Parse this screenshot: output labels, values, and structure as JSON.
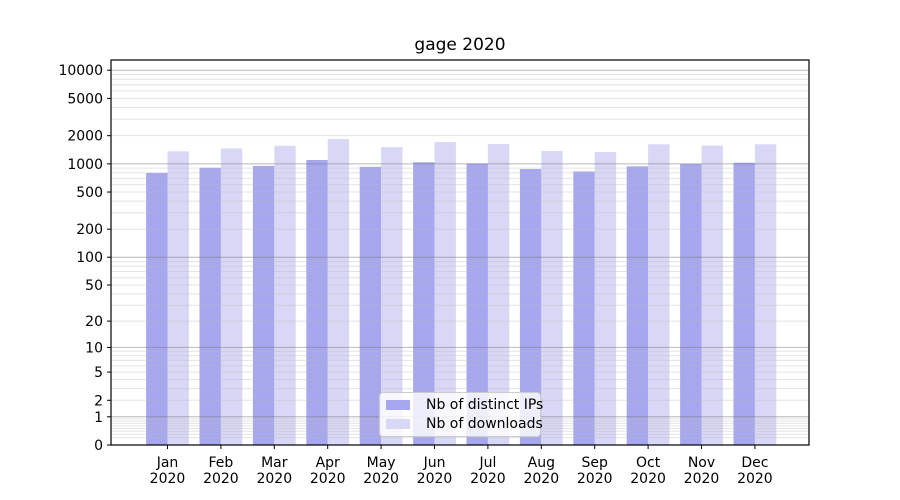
{
  "title": "gage 2020",
  "legend": {
    "items": [
      {
        "label": "Nb of distinct IPs",
        "color": "#a7a7f0"
      },
      {
        "label": "Nb of downloads",
        "color": "#d8d8f6"
      }
    ]
  },
  "chart_data": {
    "type": "bar",
    "title": "gage 2020",
    "categories": [
      "Jan",
      "Feb",
      "Mar",
      "Apr",
      "May",
      "Jun",
      "Jul",
      "Aug",
      "Sep",
      "Oct",
      "Nov",
      "Dec"
    ],
    "year_label": "2020",
    "series": [
      {
        "name": "Nb of distinct IPs",
        "color": "#a7a7f0",
        "fill_rgba": "rgba(122,122,232,0.66)",
        "values": [
          800,
          910,
          950,
          1100,
          930,
          1040,
          1010,
          880,
          830,
          940,
          1000,
          1030
        ]
      },
      {
        "name": "Nb of downloads",
        "color": "#d8d8f6",
        "fill_rgba": "rgba(196,196,242,0.66)",
        "values": [
          1360,
          1460,
          1560,
          1840,
          1510,
          1710,
          1630,
          1370,
          1340,
          1620,
          1570,
          1620
        ]
      }
    ],
    "xlabel": "",
    "ylabel": "",
    "yscale": "log1p",
    "ylim": [
      0,
      12850
    ],
    "yticks": [
      0,
      1,
      2,
      5,
      10,
      20,
      50,
      100,
      200,
      500,
      1000,
      2000,
      5000,
      10000
    ],
    "grid": "major and minor horizontal gridlines",
    "legend_position": "lower center, inside axes"
  },
  "colors": {
    "major_gridline": "#c0c0c0",
    "minor_gridline": "#e6e6e6",
    "axis": "#000000",
    "background": "#ffffff"
  }
}
